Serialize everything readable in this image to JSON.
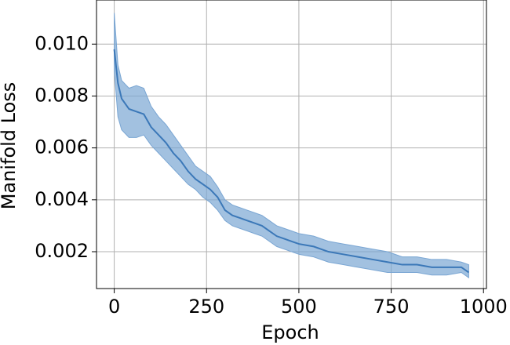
{
  "chart_data": {
    "type": "line",
    "x_label": "Epoch",
    "y_label": "Manifold Loss",
    "x": [
      0,
      10,
      20,
      40,
      60,
      80,
      100,
      120,
      140,
      160,
      180,
      200,
      220,
      240,
      260,
      280,
      300,
      320,
      340,
      360,
      380,
      400,
      420,
      440,
      460,
      480,
      500,
      540,
      580,
      620,
      660,
      700,
      740,
      780,
      820,
      860,
      900,
      940,
      960
    ],
    "values": [
      0.0098,
      0.0085,
      0.0079,
      0.0075,
      0.0074,
      0.0073,
      0.0068,
      0.0065,
      0.0062,
      0.0058,
      0.0055,
      0.0051,
      0.0048,
      0.0046,
      0.0044,
      0.0041,
      0.0036,
      0.0034,
      0.0033,
      0.0032,
      0.0031,
      0.003,
      0.0028,
      0.0026,
      0.0025,
      0.0024,
      0.0023,
      0.0022,
      0.002,
      0.0019,
      0.0018,
      0.0017,
      0.0016,
      0.0015,
      0.0015,
      0.0014,
      0.0014,
      0.0014,
      0.0012
    ],
    "band": {
      "upper": [
        0.0112,
        0.0092,
        0.0086,
        0.0083,
        0.0084,
        0.0083,
        0.0076,
        0.0072,
        0.0069,
        0.0065,
        0.0061,
        0.0057,
        0.0053,
        0.0051,
        0.0049,
        0.0045,
        0.004,
        0.0038,
        0.0037,
        0.0036,
        0.0035,
        0.0034,
        0.0032,
        0.003,
        0.0029,
        0.0028,
        0.0027,
        0.0026,
        0.0024,
        0.0023,
        0.0022,
        0.0021,
        0.002,
        0.0018,
        0.0018,
        0.0017,
        0.0017,
        0.0016,
        0.0015
      ],
      "lower": [
        0.009,
        0.0072,
        0.0067,
        0.0064,
        0.0064,
        0.0065,
        0.0061,
        0.0058,
        0.0055,
        0.0052,
        0.0049,
        0.0046,
        0.0044,
        0.0041,
        0.0039,
        0.0036,
        0.0032,
        0.003,
        0.0029,
        0.0028,
        0.0027,
        0.0026,
        0.0024,
        0.0022,
        0.0021,
        0.002,
        0.0019,
        0.0018,
        0.0016,
        0.0015,
        0.0014,
        0.0013,
        0.0012,
        0.0012,
        0.0012,
        0.0011,
        0.0011,
        0.0012,
        0.001
      ]
    },
    "color": "#3b78b8",
    "band_color": "#7aa6d3",
    "xlim": [
      -48,
      1008
    ],
    "ylim": [
      0.00058,
      0.0117
    ],
    "xticks": [
      0,
      250,
      500,
      750,
      1000
    ],
    "yticks": [
      0.002,
      0.004,
      0.006,
      0.008,
      {
        "value": 0.01,
        "label": "0.010"
      }
    ],
    "grid": true
  }
}
